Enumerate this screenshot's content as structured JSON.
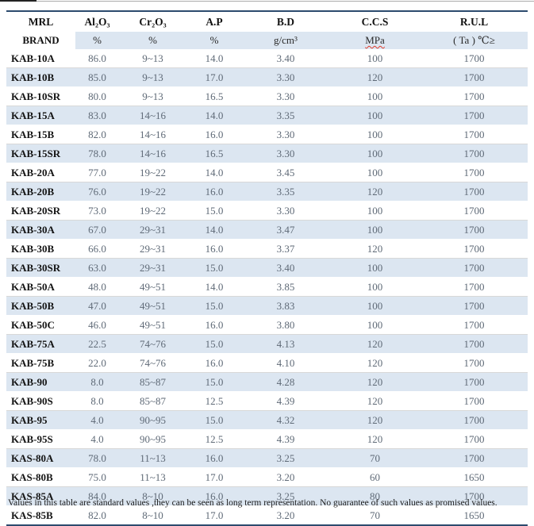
{
  "table": {
    "columns": [
      {
        "line1": "MRL",
        "line2": "BRAND"
      },
      {
        "line1": "Al₂O₃",
        "line2": "%"
      },
      {
        "line1": "Cr₂O₃",
        "line2": "%"
      },
      {
        "line1": "A.P",
        "line2": "%"
      },
      {
        "line1": "B.D",
        "line2": "g/cm³"
      },
      {
        "line1": "C.C.S",
        "line2": "MPa"
      },
      {
        "line1": "R.U.L",
        "line2": "( Ta ) ℃≥"
      }
    ],
    "column_keys": [
      "brand",
      "al2o3",
      "cr2o3",
      "ap",
      "bd",
      "ccs",
      "rul"
    ],
    "rows": [
      [
        "KAB-10A",
        "86.0",
        "9~13",
        "14.0",
        "3.40",
        "100",
        "1700"
      ],
      [
        "KAB-10B",
        "85.0",
        "9~13",
        "17.0",
        "3.30",
        "120",
        "1700"
      ],
      [
        "KAB-10SR",
        "80.0",
        "9~13",
        "16.5",
        "3.30",
        "100",
        "1700"
      ],
      [
        "KAB-15A",
        "83.0",
        "14~16",
        "14.0",
        "3.35",
        "100",
        "1700"
      ],
      [
        "KAB-15B",
        "82.0",
        "14~16",
        "16.0",
        "3.30",
        "100",
        "1700"
      ],
      [
        "KAB-15SR",
        "78.0",
        "14~16",
        "16.5",
        "3.30",
        "100",
        "1700"
      ],
      [
        "KAB-20A",
        "77.0",
        "19~22",
        "14.0",
        "3.45",
        "100",
        "1700"
      ],
      [
        "KAB-20B",
        "76.0",
        "19~22",
        "16.0",
        "3.35",
        "120",
        "1700"
      ],
      [
        "KAB-20SR",
        "73.0",
        "19~22",
        "15.0",
        "3.30",
        "100",
        "1700"
      ],
      [
        "KAB-30A",
        "67.0",
        "29~31",
        "14.0",
        "3.47",
        "100",
        "1700"
      ],
      [
        "KAB-30B",
        "66.0",
        "29~31",
        "16.0",
        "3.37",
        "120",
        "1700"
      ],
      [
        "KAB-30SR",
        "63.0",
        "29~31",
        "15.0",
        "3.40",
        "100",
        "1700"
      ],
      [
        "KAB-50A",
        "48.0",
        "49~51",
        "14.0",
        "3.85",
        "100",
        "1700"
      ],
      [
        "KAB-50B",
        "47.0",
        "49~51",
        "15.0",
        "3.83",
        "100",
        "1700"
      ],
      [
        "KAB-50C",
        "46.0",
        "49~51",
        "16.0",
        "3.80",
        "100",
        "1700"
      ],
      [
        "KAB-75A",
        "22.5",
        "74~76",
        "15.0",
        "4.13",
        "120",
        "1700"
      ],
      [
        "KAB-75B",
        "22.0",
        "74~76",
        "16.0",
        "4.10",
        "120",
        "1700"
      ],
      [
        "KAB-90",
        "8.0",
        "85~87",
        "15.0",
        "4.28",
        "120",
        "1700"
      ],
      [
        "KAB-90S",
        "8.0",
        "85~87",
        "12.5",
        "4.39",
        "120",
        "1700"
      ],
      [
        "KAB-95",
        "4.0",
        "90~95",
        "15.0",
        "4.32",
        "120",
        "1700"
      ],
      [
        "KAB-95S",
        "4.0",
        "90~95",
        "12.5",
        "4.39",
        "120",
        "1700"
      ],
      [
        "KAS-80A",
        "78.0",
        "11~13",
        "16.0",
        "3.25",
        "70",
        "1700"
      ],
      [
        "KAS-80B",
        "75.0",
        "11~13",
        "17.0",
        "3.20",
        "60",
        "1650"
      ],
      [
        "KAS-85A",
        "84.0",
        "8~10",
        "16.0",
        "3.25",
        "80",
        "1700"
      ],
      [
        "KAS-85B",
        "82.0",
        "8~10",
        "17.0",
        "3.20",
        "70",
        "1650"
      ]
    ]
  },
  "footer": {
    "note": "Values in this table are standard values ,they can be seen as long term representation. No guarantee of such values as promised values."
  },
  "colors": {
    "border_navy": "#2c4b6e",
    "stripe_blue": "#dce6f1",
    "data_text": "#5f6a77",
    "spellcheck_red": "#e03a2a"
  }
}
